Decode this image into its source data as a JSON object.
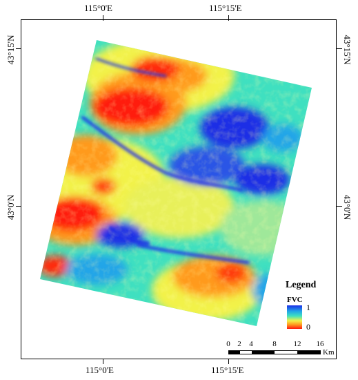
{
  "map": {
    "top_labels": [
      "115°0'E",
      "115°15'E"
    ],
    "bottom_labels": [
      "115°0'E",
      "115°15'E"
    ],
    "left_labels": [
      "43°15'N",
      "43°0'N"
    ],
    "right_labels": [
      "43°15'N",
      "43°0'N"
    ]
  },
  "legend": {
    "title": "Legend",
    "variable": "FVC",
    "max_label": "1",
    "min_label": "0",
    "colors": [
      "#1a2ee6",
      "#22a5e8",
      "#3fe0c0",
      "#f2f24a",
      "#ff9a1f",
      "#ff1a10"
    ]
  },
  "scalebar": {
    "ticks": [
      "0",
      "2",
      "4",
      "8",
      "12",
      "16"
    ],
    "unit": "Km"
  }
}
